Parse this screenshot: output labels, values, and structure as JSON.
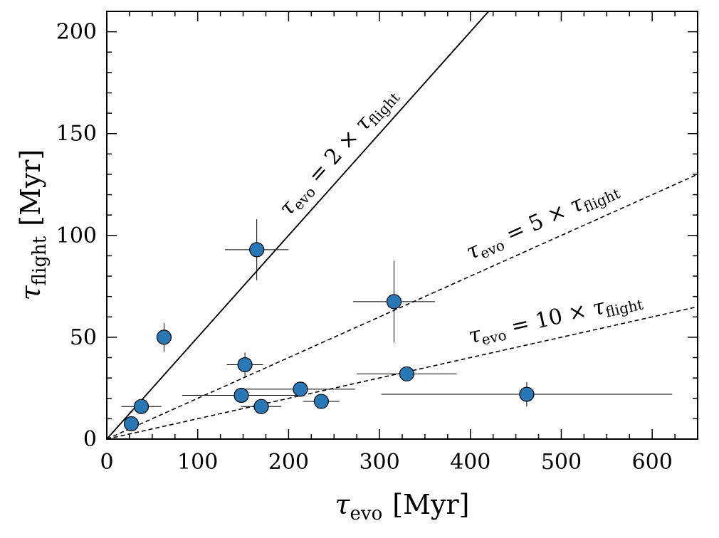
{
  "chart_data": {
    "type": "scatter",
    "title": "",
    "xlabel": {
      "symbol": "τ",
      "sub": "evo",
      "unit": "[Myr]"
    },
    "ylabel": {
      "symbol": "τ",
      "sub": "flight",
      "unit": "[Myr]"
    },
    "xlim": [
      0,
      650
    ],
    "ylim": [
      0,
      210
    ],
    "xticks": [
      0,
      100,
      200,
      300,
      400,
      500,
      600
    ],
    "yticks": [
      0,
      50,
      100,
      150,
      200
    ],
    "grid": false,
    "legend": "none",
    "marker_color": "#2878b5",
    "reference_lines": [
      {
        "slope": 0.5,
        "style": "solid",
        "label": null
      },
      {
        "slope": 0.5,
        "style": "dashed",
        "label": {
          "left": "τ",
          "left_sub": "evo",
          "middle": " = 2 × ",
          "right": "τ",
          "right_sub": "flight"
        },
        "label_x": 200,
        "label_offset": 9
      },
      {
        "slope": 0.2,
        "style": "dashed",
        "label": {
          "left": "τ",
          "left_sub": "evo",
          "middle": " = 5 × ",
          "right": "τ",
          "right_sub": "flight"
        },
        "label_x": 400,
        "label_offset": 8
      },
      {
        "slope": 0.1,
        "style": "dashed",
        "label": {
          "left": "τ",
          "left_sub": "evo",
          "middle": " = 10 × ",
          "right": "τ",
          "right_sub": "flight"
        },
        "label_x": 400,
        "label_offset": 7
      }
    ],
    "points": [
      {
        "x": 27,
        "y": 7.5,
        "xerr": 0,
        "yerr": 0
      },
      {
        "x": 38,
        "y": 16,
        "xerr": 22,
        "yerr": 0
      },
      {
        "x": 63,
        "y": 50,
        "xerr": 0,
        "yerr": 7
      },
      {
        "x": 165,
        "y": 93,
        "xerr": 35,
        "yerr": 15
      },
      {
        "x": 152,
        "y": 36.5,
        "xerr": 20,
        "yerr": 6
      },
      {
        "x": 148,
        "y": 21.5,
        "xerr": 65,
        "yerr": 0
      },
      {
        "x": 170,
        "y": 16,
        "xerr": 22,
        "yerr": 0
      },
      {
        "x": 213,
        "y": 24.5,
        "xerr": 60,
        "yerr": 0
      },
      {
        "x": 236,
        "y": 18.5,
        "xerr": 20,
        "yerr": 0
      },
      {
        "x": 316,
        "y": 67.5,
        "xerr": 45,
        "yerr": 20
      },
      {
        "x": 330,
        "y": 32,
        "xerr": 55,
        "yerr": 0
      },
      {
        "x": 462,
        "y": 22,
        "xerr": 160,
        "yerr": 6
      }
    ]
  }
}
